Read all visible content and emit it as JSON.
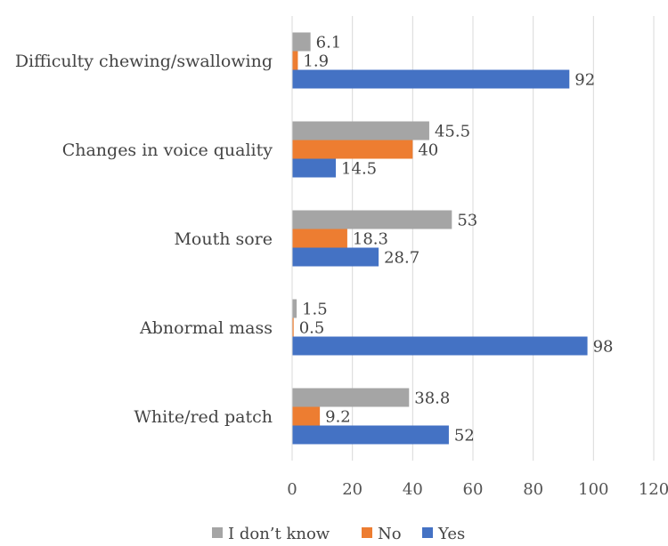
{
  "chart_data": {
    "type": "bar",
    "orientation": "horizontal",
    "categories": [
      "Difficulty chewing/swallowing",
      "Changes in voice quality",
      "Mouth sore",
      "Abnormal mass",
      "White/red patch"
    ],
    "series": [
      {
        "name": "I don’t know",
        "color": "#a5a5a5",
        "values": [
          6.1,
          45.5,
          53,
          1.5,
          38.8
        ],
        "labels": [
          "6.1",
          "45.5",
          "53",
          "1.5",
          "38.8"
        ]
      },
      {
        "name": "No",
        "color": "#ed7d31",
        "values": [
          1.9,
          40,
          18.3,
          0.5,
          9.2
        ],
        "labels": [
          "1.9",
          "40",
          "18.3",
          "0.5",
          "9.2"
        ]
      },
      {
        "name": "Yes",
        "color": "#4472c4",
        "values": [
          92,
          14.5,
          28.7,
          98,
          52
        ],
        "labels": [
          "92",
          "14.5",
          "28.7",
          "98",
          "52"
        ]
      }
    ],
    "xlim": [
      0,
      120
    ],
    "x_ticks": [
      "0",
      "20",
      "40",
      "60",
      "80",
      "100",
      "120"
    ],
    "gridlines": true,
    "legend_position": "bottom",
    "title": "",
    "xlabel": "",
    "ylabel": ""
  }
}
